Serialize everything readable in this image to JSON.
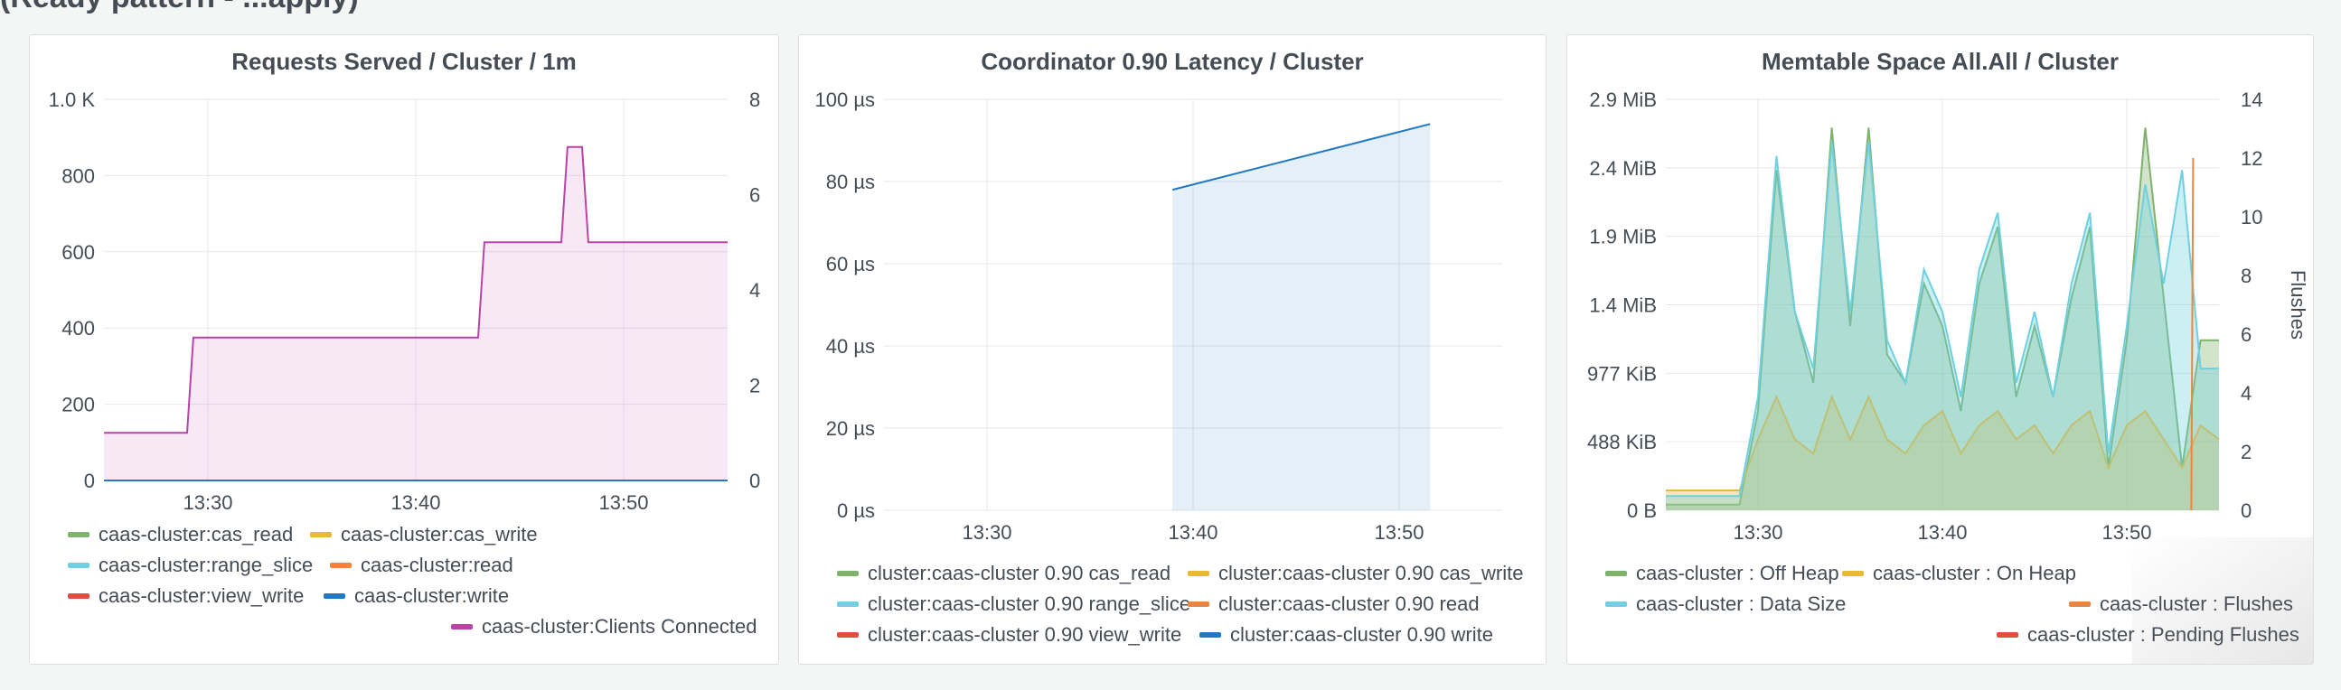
{
  "dashboard": {
    "partial_row_title": "(Ready pattern - ...apply)"
  },
  "chart_data": [
    {
      "type": "line",
      "title": "Requests Served / Cluster / 1m",
      "x_ticks": [
        "13:30",
        "13:40",
        "13:50"
      ],
      "y_ticks": [
        "0",
        "200",
        "400",
        "600",
        "800",
        "1.0 K"
      ],
      "y_right_ticks": [
        "0",
        "2",
        "4",
        "6",
        "8"
      ],
      "ylim": [
        0,
        1000
      ],
      "y_right_lim": [
        0,
        8
      ],
      "xlim": [
        "13:25",
        "13:55"
      ],
      "grid": true,
      "legend_placement": "bottom",
      "series": [
        {
          "name": "caas-cluster:cas_read",
          "color": "#7eb26d",
          "axis": "left",
          "x": [
            "13:25",
            "13:55"
          ],
          "values": [
            0,
            0
          ]
        },
        {
          "name": "caas-cluster:cas_write",
          "color": "#eab839",
          "axis": "left",
          "x": [
            "13:25",
            "13:55"
          ],
          "values": [
            0,
            0
          ]
        },
        {
          "name": "caas-cluster:range_slice",
          "color": "#6ed0e0",
          "axis": "left",
          "x": [
            "13:25",
            "13:55"
          ],
          "values": [
            0,
            0
          ]
        },
        {
          "name": "caas-cluster:read",
          "color": "#ef843c",
          "axis": "left",
          "x": [
            "13:25",
            "13:55"
          ],
          "values": [
            0,
            0
          ]
        },
        {
          "name": "caas-cluster:view_write",
          "color": "#e24d42",
          "axis": "left",
          "x": [
            "13:25",
            "13:55"
          ],
          "values": [
            0,
            0
          ]
        },
        {
          "name": "caas-cluster:write",
          "color": "#1f78c1",
          "axis": "left",
          "x": [
            "13:25",
            "13:55"
          ],
          "values": [
            0,
            0
          ]
        },
        {
          "name": "caas-cluster:Clients Connected",
          "color": "#ba43a9",
          "axis": "right",
          "x": [
            "13:25",
            "13:29",
            "13:29.3",
            "13:43",
            "13:43.3",
            "13:47",
            "13:47.3",
            "13:48",
            "13:48.3",
            "13:55"
          ],
          "values": [
            1,
            1,
            3,
            3,
            5,
            5,
            7,
            7,
            5,
            5
          ]
        }
      ]
    },
    {
      "type": "area",
      "title": "Coordinator 0.90 Latency / Cluster",
      "x_ticks": [
        "13:30",
        "13:40",
        "13:50"
      ],
      "y_ticks": [
        "0 µs",
        "20 µs",
        "40 µs",
        "60 µs",
        "80 µs",
        "100 µs"
      ],
      "ylim": [
        0,
        100
      ],
      "xlim": [
        "13:25",
        "13:55"
      ],
      "grid": true,
      "legend_placement": "bottom",
      "series": [
        {
          "name": "cluster:caas-cluster 0.90 cas_read",
          "color": "#7eb26d",
          "x": [],
          "values": []
        },
        {
          "name": "cluster:caas-cluster 0.90 cas_write",
          "color": "#eab839",
          "x": [],
          "values": []
        },
        {
          "name": "cluster:caas-cluster 0.90 range_slice",
          "color": "#6ed0e0",
          "x": [],
          "values": []
        },
        {
          "name": "cluster:caas-cluster 0.90 read",
          "color": "#ef843c",
          "x": [],
          "values": []
        },
        {
          "name": "cluster:caas-cluster 0.90 view_write",
          "color": "#e24d42",
          "x": [],
          "values": []
        },
        {
          "name": "cluster:caas-cluster 0.90 write",
          "color": "#1f78c1",
          "x": [
            "13:39",
            "13:51.5"
          ],
          "values": [
            78,
            94
          ]
        }
      ]
    },
    {
      "type": "area",
      "title": "Memtable Space All.All / Cluster",
      "x_ticks": [
        "13:30",
        "13:40",
        "13:50"
      ],
      "y_ticks": [
        "0 B",
        "488 KiB",
        "977 KiB",
        "1.4 MiB",
        "1.9 MiB",
        "2.4 MiB",
        "2.9 MiB"
      ],
      "y_right_ticks": [
        "0",
        "2",
        "4",
        "6",
        "8",
        "10",
        "12",
        "14"
      ],
      "y_right_label": "Flushes",
      "ylim": [
        0,
        2.9
      ],
      "y_right_lim": [
        0,
        14
      ],
      "xlim": [
        "13:25",
        "13:55"
      ],
      "grid": true,
      "legend_placement": "bottom",
      "series": [
        {
          "name": "caas-cluster : Off Heap",
          "color": "#7eb26d",
          "axis": "left",
          "x": [
            "13:25",
            "13:29",
            "13:30",
            "13:31",
            "13:32",
            "13:33",
            "13:34",
            "13:35",
            "13:36",
            "13:37",
            "13:38",
            "13:39",
            "13:40",
            "13:41",
            "13:42",
            "13:43",
            "13:44",
            "13:45",
            "13:46",
            "13:47",
            "13:48",
            "13:49",
            "13:50",
            "13:51",
            "13:52",
            "13:53",
            "13:54",
            "13:55"
          ],
          "values": [
            0.04,
            0.04,
            0.7,
            2.4,
            1.4,
            0.9,
            2.7,
            1.3,
            2.7,
            1.1,
            0.9,
            1.6,
            1.3,
            0.7,
            1.6,
            2.0,
            0.8,
            1.3,
            0.8,
            1.5,
            2.0,
            0.3,
            1.2,
            2.7,
            1.5,
            0.3,
            1.2,
            1.2
          ]
        },
        {
          "name": "caas-cluster : On Heap",
          "color": "#eab839",
          "axis": "left",
          "x": [
            "13:25",
            "13:29",
            "13:30",
            "13:31",
            "13:32",
            "13:33",
            "13:34",
            "13:35",
            "13:36",
            "13:37",
            "13:38",
            "13:39",
            "13:40",
            "13:41",
            "13:42",
            "13:43",
            "13:44",
            "13:45",
            "13:46",
            "13:47",
            "13:48",
            "13:49",
            "13:50",
            "13:51",
            "13:52",
            "13:53",
            "13:54",
            "13:55"
          ],
          "values": [
            0.14,
            0.14,
            0.5,
            0.8,
            0.5,
            0.4,
            0.8,
            0.5,
            0.8,
            0.5,
            0.4,
            0.6,
            0.7,
            0.4,
            0.6,
            0.7,
            0.5,
            0.6,
            0.4,
            0.6,
            0.7,
            0.3,
            0.6,
            0.7,
            0.5,
            0.3,
            0.6,
            0.5
          ]
        },
        {
          "name": "caas-cluster : Data Size",
          "color": "#6ed0e0",
          "axis": "left",
          "x": [
            "13:25",
            "13:29",
            "13:30",
            "13:31",
            "13:32",
            "13:33",
            "13:34",
            "13:35",
            "13:36",
            "13:37",
            "13:38",
            "13:39",
            "13:40",
            "13:41",
            "13:42",
            "13:43",
            "13:44",
            "13:45",
            "13:46",
            "13:47",
            "13:48",
            "13:49",
            "13:50",
            "13:51",
            "13:52",
            "13:53",
            "13:54",
            "13:55"
          ],
          "values": [
            0.1,
            0.1,
            0.8,
            2.5,
            1.4,
            1.0,
            2.6,
            1.4,
            2.6,
            1.2,
            0.9,
            1.7,
            1.4,
            0.8,
            1.7,
            2.1,
            0.9,
            1.4,
            0.8,
            1.6,
            2.1,
            0.4,
            1.3,
            2.3,
            1.6,
            2.4,
            1.0,
            1.0
          ]
        },
        {
          "name": "caas-cluster : Flushes",
          "color": "#ef843c",
          "axis": "right",
          "x": [
            "13:53.5",
            "13:53.6"
          ],
          "values": [
            0,
            12
          ]
        },
        {
          "name": "caas-cluster : Pending Flushes",
          "color": "#e24d42",
          "axis": "right",
          "x": [],
          "values": []
        }
      ]
    }
  ]
}
